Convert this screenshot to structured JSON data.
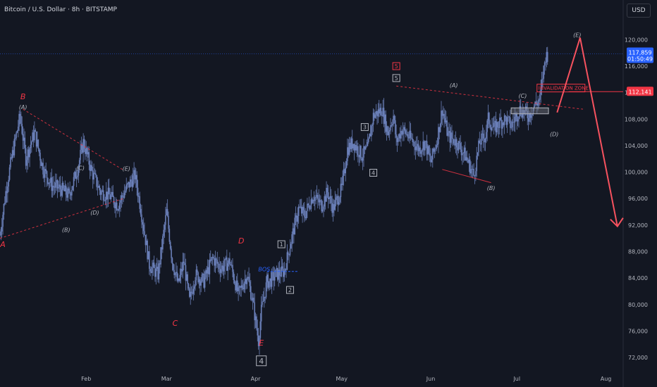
{
  "header": {
    "title": "Bitcoin / U.S. Dollar · 8h · BITSTAMP",
    "currency": "USD"
  },
  "colors": {
    "background": "#131722",
    "grid": "#1e222d",
    "candle": "#6a7fb8",
    "price_badge": "#2962ff",
    "invalidation": "#f23645",
    "wave_red": "#f23645",
    "wave_gray": "#b2b5be",
    "bos": "#2962ff",
    "projection": "#f7525f"
  },
  "chart_data": {
    "type": "line",
    "title": "",
    "xlabel": "",
    "ylabel": "",
    "x_ticks": [
      "Feb",
      "Mar",
      "Apr",
      "May",
      "Jun",
      "Jul",
      "Aug"
    ],
    "x_tick_days": [
      32,
      60,
      91,
      121,
      152,
      182,
      213
    ],
    "x_range_days": [
      2,
      219
    ],
    "ylim": [
      70200,
      122800
    ],
    "y_ticks": [
      72000,
      76000,
      80000,
      84000,
      88000,
      92000,
      96000,
      100000,
      104000,
      108000,
      112000,
      116000,
      120000
    ],
    "y_tick_labels": [
      "72,000",
      "76,000",
      "80,000",
      "84,000",
      "88,000",
      "92,000",
      "96,000",
      "100,000",
      "104,000",
      "108,000",
      "112,000",
      "116,000",
      "120,000"
    ],
    "price_series": {
      "name": "",
      "day": [
        2,
        4,
        6,
        9,
        11,
        14,
        17,
        20,
        23,
        26,
        29,
        31,
        34,
        37,
        40,
        43,
        46,
        49,
        51,
        54,
        57,
        60,
        62,
        64,
        66,
        68,
        70,
        73,
        76,
        79,
        82,
        85,
        88,
        90,
        92,
        93,
        95,
        96,
        98,
        101,
        103,
        106,
        108,
        111,
        114,
        116,
        118,
        121,
        123,
        125,
        128,
        130,
        132,
        135,
        137,
        139,
        140,
        142,
        145,
        148,
        150,
        152,
        154,
        156,
        158,
        161,
        164,
        167,
        169,
        171,
        172,
        174,
        176,
        178,
        180,
        183,
        186,
        188,
        190,
        191,
        192,
        193
      ],
      "close": [
        90500,
        97000,
        102000,
        108500,
        102000,
        106000,
        100500,
        98000,
        97500,
        96500,
        100500,
        104500,
        100000,
        97000,
        96500,
        95000,
        97500,
        99500,
        94500,
        86000,
        84500,
        94000,
        86500,
        83000,
        86500,
        80500,
        84500,
        83500,
        87000,
        85500,
        86500,
        81500,
        84500,
        80500,
        74500,
        79000,
        83500,
        83500,
        84500,
        85000,
        89000,
        94500,
        93500,
        96500,
        95000,
        97000,
        94500,
        97500,
        103500,
        104500,
        102500,
        103500,
        108500,
        109500,
        106000,
        108500,
        104500,
        106500,
        105000,
        103500,
        104500,
        101500,
        104500,
        109500,
        105500,
        104500,
        102500,
        99500,
        104500,
        105500,
        108000,
        106500,
        107500,
        108000,
        107000,
        109500,
        108500,
        110000,
        111000,
        114500,
        117500,
        117859
      ]
    },
    "last_price": 117859,
    "last_price_label": "117,859",
    "countdown": "01:50:49",
    "invalidation_level": 112141,
    "invalidation_label": "112,141",
    "invalidation_zone": {
      "text": "INVALIDATION ZONE",
      "from_day": 189,
      "to_day": 200,
      "price": 112000
    },
    "bos": {
      "text": "BOS",
      "from_day": 95,
      "to_day": 106,
      "price": 85000
    },
    "range_box": {
      "from_day": 180,
      "to_day": 193,
      "top": 109700,
      "bottom": 108800
    },
    "wave_labels": [
      {
        "text": "B",
        "day": 10,
        "price": 111000,
        "color": "red",
        "style": "italic"
      },
      {
        "text": "(A)",
        "day": 10,
        "price": 109500,
        "color": "gray",
        "style": "italic"
      },
      {
        "text": "A",
        "day": 3,
        "price": 88700,
        "color": "red",
        "style": "italic"
      },
      {
        "text": "(B)",
        "day": 25,
        "price": 91000,
        "color": "gray",
        "style": "italic"
      },
      {
        "text": "(C)",
        "day": 30,
        "price": 100300,
        "color": "gray",
        "style": "italic"
      },
      {
        "text": "(D)",
        "day": 35,
        "price": 93600,
        "color": "gray",
        "style": "italic"
      },
      {
        "text": "(E)",
        "day": 46,
        "price": 100200,
        "color": "gray",
        "style": "italic"
      },
      {
        "text": "C",
        "day": 63,
        "price": 76800,
        "color": "red",
        "style": "italic"
      },
      {
        "text": "D",
        "day": 86,
        "price": 89200,
        "color": "red",
        "style": "italic"
      },
      {
        "text": "E",
        "day": 93,
        "price": 73800,
        "color": "red",
        "style": "italic"
      },
      {
        "text": "4",
        "day": 93,
        "price": 71500,
        "color": "gray",
        "style": "boxed-large"
      },
      {
        "text": "BOS",
        "day": 94,
        "price": 85000,
        "color": "blue",
        "style": "italic"
      },
      {
        "text": "1",
        "day": 100,
        "price": 89100,
        "color": "gray",
        "style": "boxed"
      },
      {
        "text": "2",
        "day": 103,
        "price": 82200,
        "color": "gray",
        "style": "boxed"
      },
      {
        "text": "3",
        "day": 129,
        "price": 106800,
        "color": "gray",
        "style": "boxed"
      },
      {
        "text": "4",
        "day": 132,
        "price": 99900,
        "color": "gray",
        "style": "boxed"
      },
      {
        "text": "5",
        "day": 140,
        "price": 116000,
        "color": "red",
        "style": "boxed"
      },
      {
        "text": "5",
        "day": 140,
        "price": 114200,
        "color": "gray",
        "style": "boxed"
      },
      {
        "text": "(A)",
        "day": 160,
        "price": 112800,
        "color": "gray",
        "style": "italic"
      },
      {
        "text": "(B)",
        "day": 173,
        "price": 97300,
        "color": "gray",
        "style": "italic"
      },
      {
        "text": "(C)",
        "day": 184,
        "price": 111200,
        "color": "gray",
        "style": "italic"
      },
      {
        "text": "(D)",
        "day": 195,
        "price": 105400,
        "color": "gray",
        "style": "italic"
      },
      {
        "text": "(E)",
        "day": 203,
        "price": 120400,
        "color": "gray",
        "style": "italic"
      }
    ],
    "trendlines": [
      {
        "name": "upper-triangle-1",
        "from": [
          10,
          109500
        ],
        "to": [
          45,
          100300
        ],
        "style": "dashed",
        "color": "red"
      },
      {
        "name": "lower-triangle-1",
        "from": [
          2,
          90000
        ],
        "to": [
          45,
          96000
        ],
        "style": "dashed",
        "color": "red"
      },
      {
        "name": "upper-triangle-2",
        "from": [
          140,
          113000
        ],
        "to": [
          205,
          109500
        ],
        "style": "dashed",
        "color": "red"
      },
      {
        "name": "lower-triangle-2",
        "from": [
          156,
          100400
        ],
        "to": [
          173,
          98400
        ],
        "style": "solid",
        "color": "red"
      }
    ],
    "projection": [
      [
        196,
        109000
      ],
      [
        204,
        120300
      ],
      [
        217,
        91800
      ]
    ],
    "grid": false,
    "legend": "none"
  }
}
